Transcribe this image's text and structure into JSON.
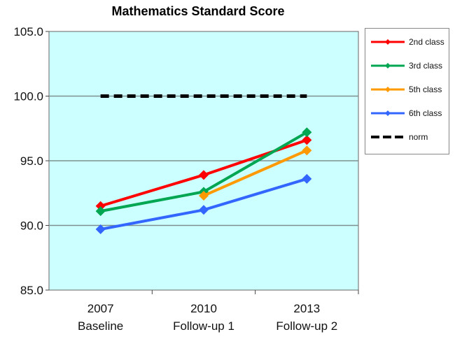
{
  "chart_data": {
    "type": "line",
    "title": "Mathematics Standard Score",
    "categories": [
      [
        "2007",
        "Baseline"
      ],
      [
        "2010",
        "Follow-up 1"
      ],
      [
        "2013",
        "Follow-up 2"
      ]
    ],
    "ylim": [
      85,
      105
    ],
    "yticks": [
      "85.0",
      "90.0",
      "95.0",
      "100.0",
      "105.0"
    ],
    "ytick_values": [
      85,
      90,
      95,
      100,
      105
    ],
    "grid": true,
    "legend_position": "right",
    "plot_background": "#ccffff",
    "series": [
      {
        "name": "2nd class",
        "color": "#ff0000",
        "values": [
          91.5,
          93.9,
          96.6
        ],
        "marker": "diamond"
      },
      {
        "name": "3rd class",
        "color": "#00a651",
        "values": [
          91.1,
          92.6,
          97.2
        ],
        "marker": "diamond"
      },
      {
        "name": "5th class",
        "color": "#ff9900",
        "values": [
          null,
          92.3,
          95.8
        ],
        "marker": "diamond"
      },
      {
        "name": "6th class",
        "color": "#3366ff",
        "values": [
          89.7,
          91.2,
          93.6
        ],
        "marker": "diamond"
      },
      {
        "name": "norm",
        "color": "#000000",
        "values": [
          100,
          100,
          100
        ],
        "dashed": true
      }
    ]
  }
}
